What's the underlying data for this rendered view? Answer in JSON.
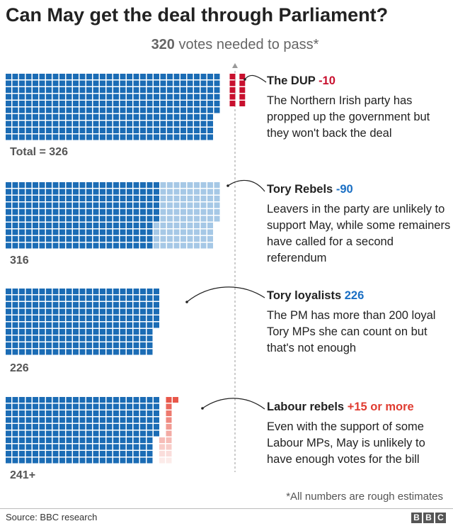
{
  "title": "Can May get the deal through Parliament?",
  "subtitle": {
    "number": "320",
    "text": " votes needed to pass*"
  },
  "colors": {
    "tory": "#1b6cb5",
    "dup": "#c8102e",
    "rebels": "#a6c8e6",
    "labour": "#e8574a",
    "threshold_line": "#999999"
  },
  "chart_data": {
    "type": "waffle",
    "title": "Can May get the deal through Parliament?",
    "threshold": 320,
    "threshold_label": "320 votes needed to pass*",
    "rows": [
      {
        "id": "dup",
        "total_label": "Total = 326",
        "total": 326,
        "segments": [
          {
            "name": "Tory",
            "value": 316
          },
          {
            "name": "DUP",
            "value": 10
          }
        ],
        "heading": "The DUP",
        "delta": "-10",
        "body": "The Northern Irish party has propped up the government but they won't back the deal"
      },
      {
        "id": "rebels",
        "total_label": "316",
        "total": 316,
        "segments": [
          {
            "name": "Tory loyalists",
            "value": 226
          },
          {
            "name": "Tory Rebels",
            "value": 90
          }
        ],
        "heading": "Tory Rebels",
        "delta": "-90",
        "body": "Leavers in the party are unlikely to support May, while some remainers have called for a second referendum"
      },
      {
        "id": "loyalists",
        "total_label": "226",
        "total": 226,
        "segments": [
          {
            "name": "Tory loyalists",
            "value": 226
          }
        ],
        "heading": "Tory loyalists",
        "delta": "226",
        "body": "The PM has more than 200 loyal Tory MPs she can count on but that's not enough"
      },
      {
        "id": "labour",
        "total_label": "241+",
        "total": 241,
        "segments": [
          {
            "name": "Tory loyalists",
            "value": 226
          },
          {
            "name": "Labour rebels",
            "value": 15
          }
        ],
        "heading": "Labour rebels",
        "delta": "+15 or more",
        "body": "Even with the support of some Labour MPs, May is unlikely to have enough votes for the bill"
      }
    ]
  },
  "note": "*All numbers are rough estimates",
  "source": "Source: BBC research",
  "logo": [
    "B",
    "B",
    "C"
  ]
}
